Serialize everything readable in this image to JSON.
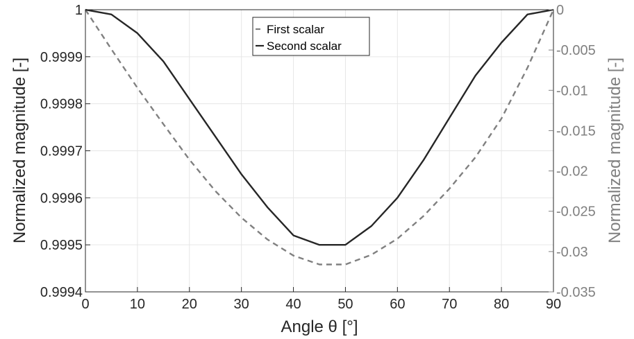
{
  "chart_data": {
    "type": "line",
    "title": "",
    "xlabel": "Angle θ [°]",
    "ylabel_left": "Normalized magnitude [-]",
    "ylabel_right": "Normalized magnitude [-]",
    "xlim": [
      0,
      90
    ],
    "ylim_left": [
      0.9994,
      1
    ],
    "ylim_right": [
      -0.035,
      0
    ],
    "x_ticks": [
      "0",
      "10",
      "20",
      "30",
      "40",
      "50",
      "60",
      "70",
      "80",
      "90"
    ],
    "y_left_ticks": [
      "0.9994",
      "0.9995",
      "0.9996",
      "0.9997",
      "0.9998",
      "0.9999",
      "1"
    ],
    "y_right_ticks": [
      "-0.035",
      "-0.03",
      "-0.025",
      "-0.02",
      "-0.015",
      "-0.01",
      "-0.005",
      "0"
    ],
    "grid": true,
    "legend_position": "top-center",
    "x": [
      0,
      5,
      10,
      15,
      20,
      25,
      30,
      35,
      40,
      45,
      50,
      55,
      60,
      65,
      70,
      75,
      80,
      85,
      90
    ],
    "series": [
      {
        "name": "First scalar",
        "axis": "right",
        "style": "dashed",
        "color": "#808080",
        "values": [
          0,
          -0.0049,
          -0.0097,
          -0.0142,
          -0.0186,
          -0.0225,
          -0.0258,
          -0.0285,
          -0.0305,
          -0.0316,
          -0.0316,
          -0.0304,
          -0.0284,
          -0.0256,
          -0.0222,
          -0.0183,
          -0.0135,
          -0.0072,
          0
        ]
      },
      {
        "name": "Second scalar",
        "axis": "left",
        "style": "solid",
        "color": "#262626",
        "values": [
          1,
          0.99999,
          0.99995,
          0.99989,
          0.99981,
          0.99973,
          0.99965,
          0.99958,
          0.99952,
          0.9995,
          0.9995,
          0.99954,
          0.9996,
          0.99968,
          0.99977,
          0.99986,
          0.99993,
          0.99999,
          1
        ]
      }
    ]
  }
}
